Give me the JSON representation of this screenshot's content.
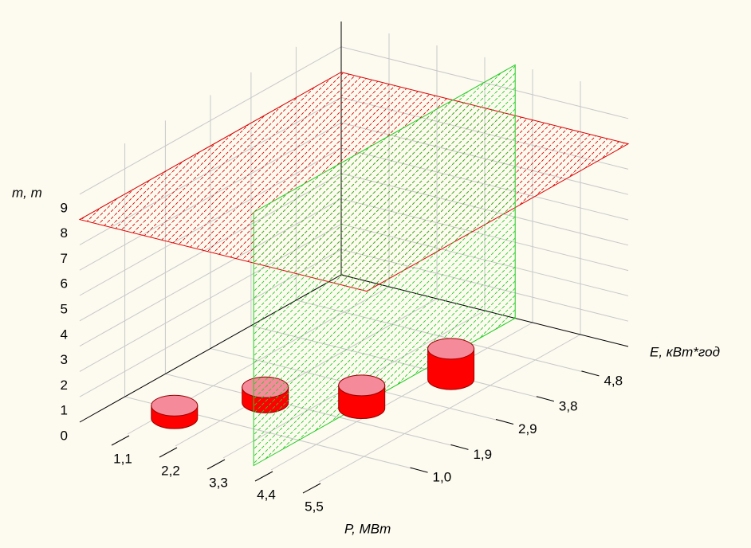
{
  "chart_data": {
    "type": "cylinder3d",
    "xlabel": "P, МВт",
    "ylabel": "E, кВт*год",
    "zlabel": "m, т",
    "xlim": [
      0,
      6.6
    ],
    "xticks": [
      {
        "value": 1.1,
        "label": "1,1"
      },
      {
        "value": 2.2,
        "label": "2,2"
      },
      {
        "value": 3.3,
        "label": "3,3"
      },
      {
        "value": 4.4,
        "label": "4,4"
      },
      {
        "value": 5.5,
        "label": "5,5"
      }
    ],
    "ylim": [
      0,
      5.8
    ],
    "yticks": [
      {
        "value": 1.0,
        "label": "1,0"
      },
      {
        "value": 1.9,
        "label": "1,9"
      },
      {
        "value": 2.9,
        "label": "2,9"
      },
      {
        "value": 3.8,
        "label": "3,8"
      },
      {
        "value": 4.8,
        "label": "4,8"
      }
    ],
    "zlim": [
      0,
      10
    ],
    "zticks": [
      0,
      1,
      2,
      3,
      4,
      5,
      6,
      7,
      8,
      9
    ],
    "grid": true,
    "series": [
      {
        "color": "#ff0000",
        "top_color": "#f58a9a",
        "x": [
          1.4,
          2.4,
          4.1,
          4.7
        ],
        "y": [
          0.75,
          1.8,
          2.3,
          3.7
        ],
        "values": [
          0.5,
          0.6,
          0.9,
          1.2
        ]
      }
    ],
    "planes": [
      {
        "color": "#e00000",
        "z": 8
      },
      {
        "color": "#22cc22",
        "x": 4.0
      }
    ]
  }
}
